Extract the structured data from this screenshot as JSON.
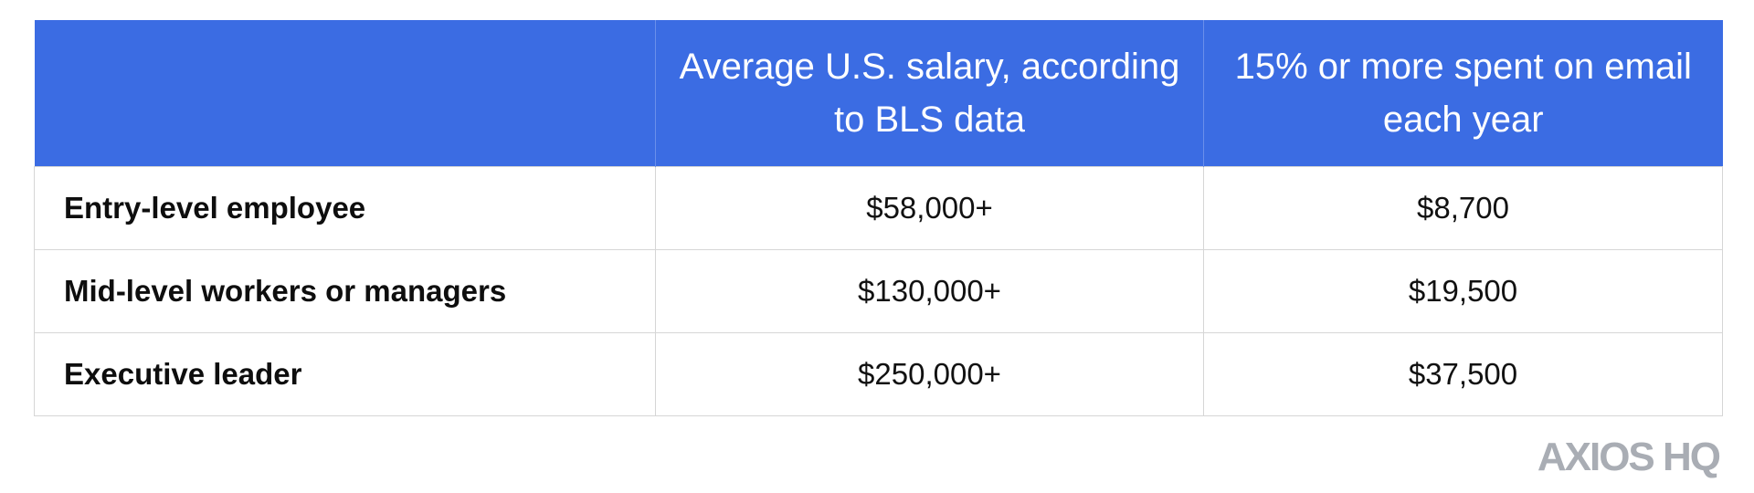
{
  "table": {
    "headers": [
      "",
      "Average U.S. salary, according to BLS data",
      "15% or more spent on email each year"
    ],
    "rows": [
      {
        "label": "Entry-level employee",
        "salary": "$58,000+",
        "email_cost": "$8,700"
      },
      {
        "label": "Mid-level workers or managers",
        "salary": "$130,000+",
        "email_cost": "$19,500"
      },
      {
        "label": "Executive leader",
        "salary": "$250,000+",
        "email_cost": "$37,500"
      }
    ]
  },
  "logo": {
    "text": "AXIOS HQ"
  },
  "colors": {
    "header_bg": "#3b6ce3",
    "header_text": "#ffffff",
    "logo": "#a9adb4",
    "grid": "#d6d6d6"
  }
}
